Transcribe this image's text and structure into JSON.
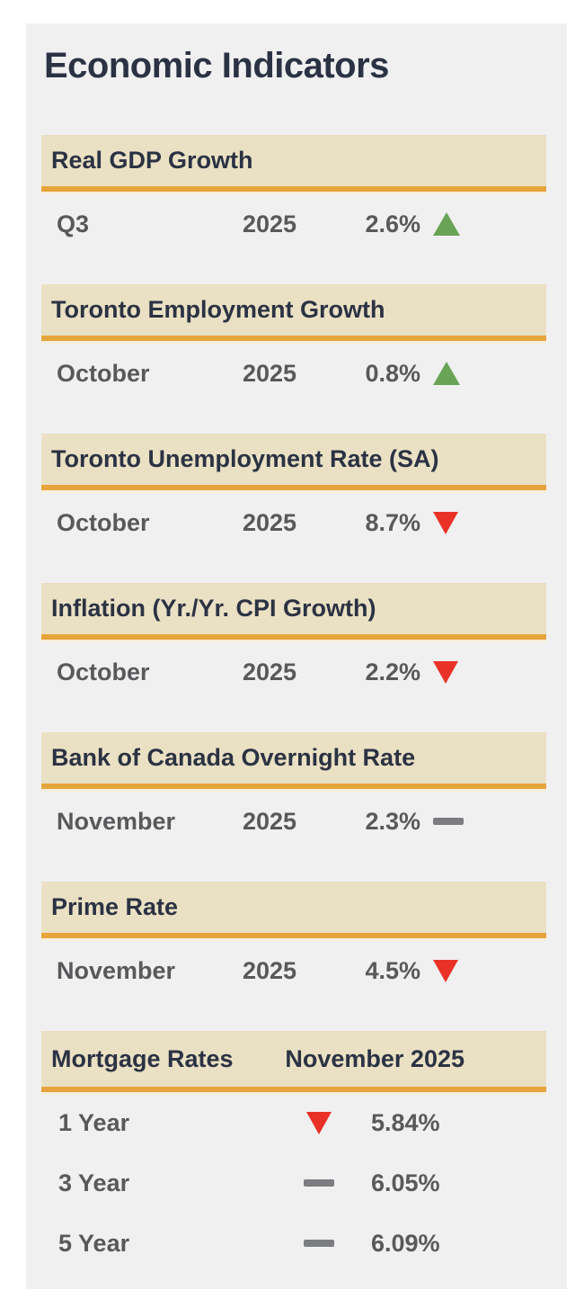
{
  "page": {
    "title": "Economic Indicators"
  },
  "colors": {
    "panel_bg": "#f0f0f1",
    "card_header_bg": "#eae1c4",
    "accent_orange": "#e6a43c",
    "heading_navy": "#2b3243",
    "value_gray": "#58595b",
    "trend_up_green": "#69a355",
    "trend_down_red": "#e93127",
    "trend_flat_gray": "#7b7d80"
  },
  "indicators": [
    {
      "title": "Real GDP Growth",
      "period": "Q3",
      "year": "2025",
      "value": "2.6%",
      "trend": "up"
    },
    {
      "title": "Toronto Employment Growth",
      "period": "October",
      "year": "2025",
      "value": "0.8%",
      "trend": "up"
    },
    {
      "title": "Toronto Unemployment Rate (SA)",
      "period": "October",
      "year": "2025",
      "value": "8.7%",
      "trend": "down"
    },
    {
      "title": "Inflation (Yr./Yr. CPI Growth)",
      "period": "October",
      "year": "2025",
      "value": "2.2%",
      "trend": "down"
    },
    {
      "title": "Bank of Canada Overnight Rate",
      "period": "November",
      "year": "2025",
      "value": "2.3%",
      "trend": "flat"
    },
    {
      "title": "Prime Rate",
      "period": "November",
      "year": "2025",
      "value": "4.5%",
      "trend": "down"
    }
  ],
  "mortgage": {
    "title": "Mortgage Rates",
    "period": "November 2025",
    "rows": [
      {
        "term": "1 Year",
        "trend": "down",
        "value": "5.84%"
      },
      {
        "term": "3 Year",
        "trend": "flat",
        "value": "6.05%"
      },
      {
        "term": "5 Year",
        "trend": "flat",
        "value": "6.09%"
      }
    ]
  }
}
